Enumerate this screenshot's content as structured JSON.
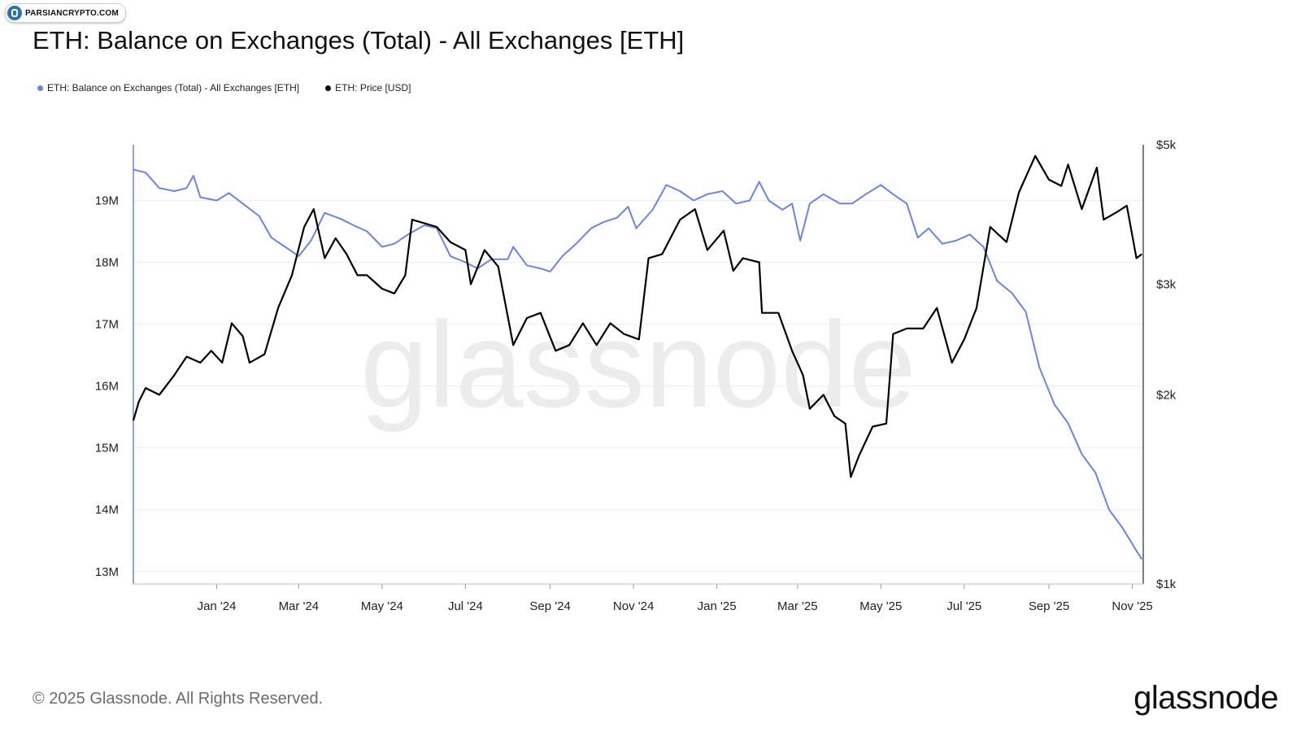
{
  "watermark_badge": {
    "text": "PARSIANCRYPTO.COM"
  },
  "title": "ETH: Balance on Exchanges (Total) - All Exchanges [ETH]",
  "legend": [
    {
      "label": "ETH: Balance on Exchanges (Total) - All Exchanges [ETH]",
      "color": "#6b83e6"
    },
    {
      "label": "ETH: Price [USD]",
      "color": "#000000"
    }
  ],
  "watermark_text": "glassnode",
  "footer": {
    "copyright": "© 2025 Glassnode. All Rights Reserved.",
    "logo": "glassnode"
  },
  "chart_data": {
    "type": "line",
    "x_ticks": [
      "Jan '24",
      "Mar '24",
      "May '24",
      "Jul '24",
      "Sep '24",
      "Nov '24",
      "Jan '25",
      "Mar '25",
      "May '25",
      "Jul '25",
      "Sep '25",
      "Nov '25"
    ],
    "y_left": {
      "ticks": [
        "13M",
        "14M",
        "15M",
        "16M",
        "17M",
        "18M",
        "19M"
      ],
      "ylim": [
        12.8,
        19.9
      ]
    },
    "y_right": {
      "ticks": [
        "$1k",
        "$2k",
        "$3k",
        "$5k"
      ],
      "scale": "log",
      "ylim": [
        1000,
        5000
      ]
    },
    "grid": true,
    "legend_position": "top-left",
    "series": [
      {
        "name": "ETH: Balance on Exchanges (Total) - All Exchanges [ETH]",
        "axis": "left",
        "color": "#6b83e6",
        "points": [
          [
            "2023-11-01",
            19.5
          ],
          [
            "2023-11-10",
            19.45
          ],
          [
            "2023-11-20",
            19.2
          ],
          [
            "2023-12-01",
            19.15
          ],
          [
            "2023-12-10",
            19.2
          ],
          [
            "2023-12-15",
            19.4
          ],
          [
            "2023-12-20",
            19.05
          ],
          [
            "2024-01-01",
            19.0
          ],
          [
            "2024-01-10",
            19.12
          ],
          [
            "2024-01-20",
            18.95
          ],
          [
            "2024-02-01",
            18.75
          ],
          [
            "2024-02-10",
            18.4
          ],
          [
            "2024-02-20",
            18.25
          ],
          [
            "2024-03-01",
            18.1
          ],
          [
            "2024-03-10",
            18.35
          ],
          [
            "2024-03-20",
            18.8
          ],
          [
            "2024-04-01",
            18.7
          ],
          [
            "2024-04-10",
            18.6
          ],
          [
            "2024-04-20",
            18.5
          ],
          [
            "2024-05-01",
            18.25
          ],
          [
            "2024-05-10",
            18.3
          ],
          [
            "2024-05-20",
            18.45
          ],
          [
            "2024-06-01",
            18.6
          ],
          [
            "2024-06-10",
            18.55
          ],
          [
            "2024-06-20",
            18.1
          ],
          [
            "2024-07-01",
            18.0
          ],
          [
            "2024-07-10",
            17.9
          ],
          [
            "2024-07-20",
            18.05
          ],
          [
            "2024-08-01",
            18.05
          ],
          [
            "2024-08-05",
            18.25
          ],
          [
            "2024-08-15",
            17.95
          ],
          [
            "2024-08-25",
            17.9
          ],
          [
            "2024-09-01",
            17.85
          ],
          [
            "2024-09-10",
            18.1
          ],
          [
            "2024-09-20",
            18.3
          ],
          [
            "2024-10-01",
            18.55
          ],
          [
            "2024-10-10",
            18.65
          ],
          [
            "2024-10-20",
            18.72
          ],
          [
            "2024-10-28",
            18.9
          ],
          [
            "2024-11-03",
            18.55
          ],
          [
            "2024-11-15",
            18.85
          ],
          [
            "2024-11-25",
            19.25
          ],
          [
            "2024-12-05",
            19.15
          ],
          [
            "2024-12-15",
            19.0
          ],
          [
            "2024-12-25",
            19.1
          ],
          [
            "2025-01-05",
            19.15
          ],
          [
            "2025-01-15",
            18.95
          ],
          [
            "2025-01-25",
            19.0
          ],
          [
            "2025-02-01",
            19.3
          ],
          [
            "2025-02-08",
            19.0
          ],
          [
            "2025-02-18",
            18.85
          ],
          [
            "2025-02-25",
            18.95
          ],
          [
            "2025-03-03",
            18.35
          ],
          [
            "2025-03-10",
            18.95
          ],
          [
            "2025-03-20",
            19.1
          ],
          [
            "2025-04-01",
            18.95
          ],
          [
            "2025-04-10",
            18.95
          ],
          [
            "2025-04-20",
            19.1
          ],
          [
            "2025-05-01",
            19.25
          ],
          [
            "2025-05-10",
            19.1
          ],
          [
            "2025-05-20",
            18.95
          ],
          [
            "2025-05-28",
            18.4
          ],
          [
            "2025-06-05",
            18.55
          ],
          [
            "2025-06-15",
            18.3
          ],
          [
            "2025-06-25",
            18.35
          ],
          [
            "2025-07-05",
            18.45
          ],
          [
            "2025-07-15",
            18.25
          ],
          [
            "2025-07-25",
            17.7
          ],
          [
            "2025-08-05",
            17.5
          ],
          [
            "2025-08-15",
            17.2
          ],
          [
            "2025-08-25",
            16.3
          ],
          [
            "2025-09-05",
            15.7
          ],
          [
            "2025-09-15",
            15.4
          ],
          [
            "2025-09-25",
            14.9
          ],
          [
            "2025-10-05",
            14.6
          ],
          [
            "2025-10-15",
            14.0
          ],
          [
            "2025-10-25",
            13.7
          ],
          [
            "2025-11-05",
            13.3
          ],
          [
            "2025-11-08",
            13.2
          ]
        ]
      },
      {
        "name": "ETH: Price [USD]",
        "axis": "right",
        "color": "#000000",
        "points": [
          [
            "2023-11-01",
            1820
          ],
          [
            "2023-11-05",
            1950
          ],
          [
            "2023-11-10",
            2050
          ],
          [
            "2023-11-20",
            2000
          ],
          [
            "2023-12-01",
            2150
          ],
          [
            "2023-12-10",
            2300
          ],
          [
            "2023-12-20",
            2250
          ],
          [
            "2023-12-28",
            2350
          ],
          [
            "2024-01-05",
            2250
          ],
          [
            "2024-01-12",
            2600
          ],
          [
            "2024-01-20",
            2480
          ],
          [
            "2024-01-25",
            2250
          ],
          [
            "2024-02-05",
            2320
          ],
          [
            "2024-02-15",
            2750
          ],
          [
            "2024-02-25",
            3100
          ],
          [
            "2024-03-05",
            3700
          ],
          [
            "2024-03-12",
            3950
          ],
          [
            "2024-03-20",
            3300
          ],
          [
            "2024-03-28",
            3550
          ],
          [
            "2024-04-05",
            3350
          ],
          [
            "2024-04-13",
            3100
          ],
          [
            "2024-04-20",
            3100
          ],
          [
            "2024-05-01",
            2950
          ],
          [
            "2024-05-10",
            2900
          ],
          [
            "2024-05-18",
            3100
          ],
          [
            "2024-05-23",
            3800
          ],
          [
            "2024-06-01",
            3750
          ],
          [
            "2024-06-10",
            3700
          ],
          [
            "2024-06-20",
            3500
          ],
          [
            "2024-07-01",
            3400
          ],
          [
            "2024-07-05",
            3000
          ],
          [
            "2024-07-15",
            3400
          ],
          [
            "2024-07-25",
            3200
          ],
          [
            "2024-08-05",
            2400
          ],
          [
            "2024-08-15",
            2650
          ],
          [
            "2024-08-25",
            2700
          ],
          [
            "2024-09-05",
            2350
          ],
          [
            "2024-09-15",
            2400
          ],
          [
            "2024-09-25",
            2600
          ],
          [
            "2024-10-05",
            2400
          ],
          [
            "2024-10-15",
            2600
          ],
          [
            "2024-10-25",
            2500
          ],
          [
            "2024-11-05",
            2450
          ],
          [
            "2024-11-12",
            3300
          ],
          [
            "2024-11-22",
            3350
          ],
          [
            "2024-12-05",
            3800
          ],
          [
            "2024-12-16",
            3950
          ],
          [
            "2024-12-25",
            3400
          ],
          [
            "2025-01-06",
            3650
          ],
          [
            "2025-01-13",
            3150
          ],
          [
            "2025-01-20",
            3300
          ],
          [
            "2025-02-01",
            3250
          ],
          [
            "2025-02-03",
            2700
          ],
          [
            "2025-02-15",
            2700
          ],
          [
            "2025-02-25",
            2350
          ],
          [
            "2025-03-05",
            2150
          ],
          [
            "2025-03-10",
            1900
          ],
          [
            "2025-03-20",
            2000
          ],
          [
            "2025-03-28",
            1850
          ],
          [
            "2025-04-05",
            1800
          ],
          [
            "2025-04-09",
            1480
          ],
          [
            "2025-04-15",
            1600
          ],
          [
            "2025-04-25",
            1780
          ],
          [
            "2025-05-05",
            1800
          ],
          [
            "2025-05-10",
            2500
          ],
          [
            "2025-05-20",
            2550
          ],
          [
            "2025-06-01",
            2550
          ],
          [
            "2025-06-11",
            2750
          ],
          [
            "2025-06-22",
            2250
          ],
          [
            "2025-07-01",
            2450
          ],
          [
            "2025-07-10",
            2750
          ],
          [
            "2025-07-20",
            3700
          ],
          [
            "2025-08-01",
            3500
          ],
          [
            "2025-08-10",
            4200
          ],
          [
            "2025-08-22",
            4800
          ],
          [
            "2025-09-01",
            4400
          ],
          [
            "2025-09-10",
            4300
          ],
          [
            "2025-09-15",
            4650
          ],
          [
            "2025-09-25",
            3950
          ],
          [
            "2025-10-06",
            4600
          ],
          [
            "2025-10-11",
            3800
          ],
          [
            "2025-10-20",
            3900
          ],
          [
            "2025-10-28",
            4000
          ],
          [
            "2025-11-04",
            3300
          ],
          [
            "2025-11-08",
            3350
          ]
        ]
      }
    ]
  }
}
